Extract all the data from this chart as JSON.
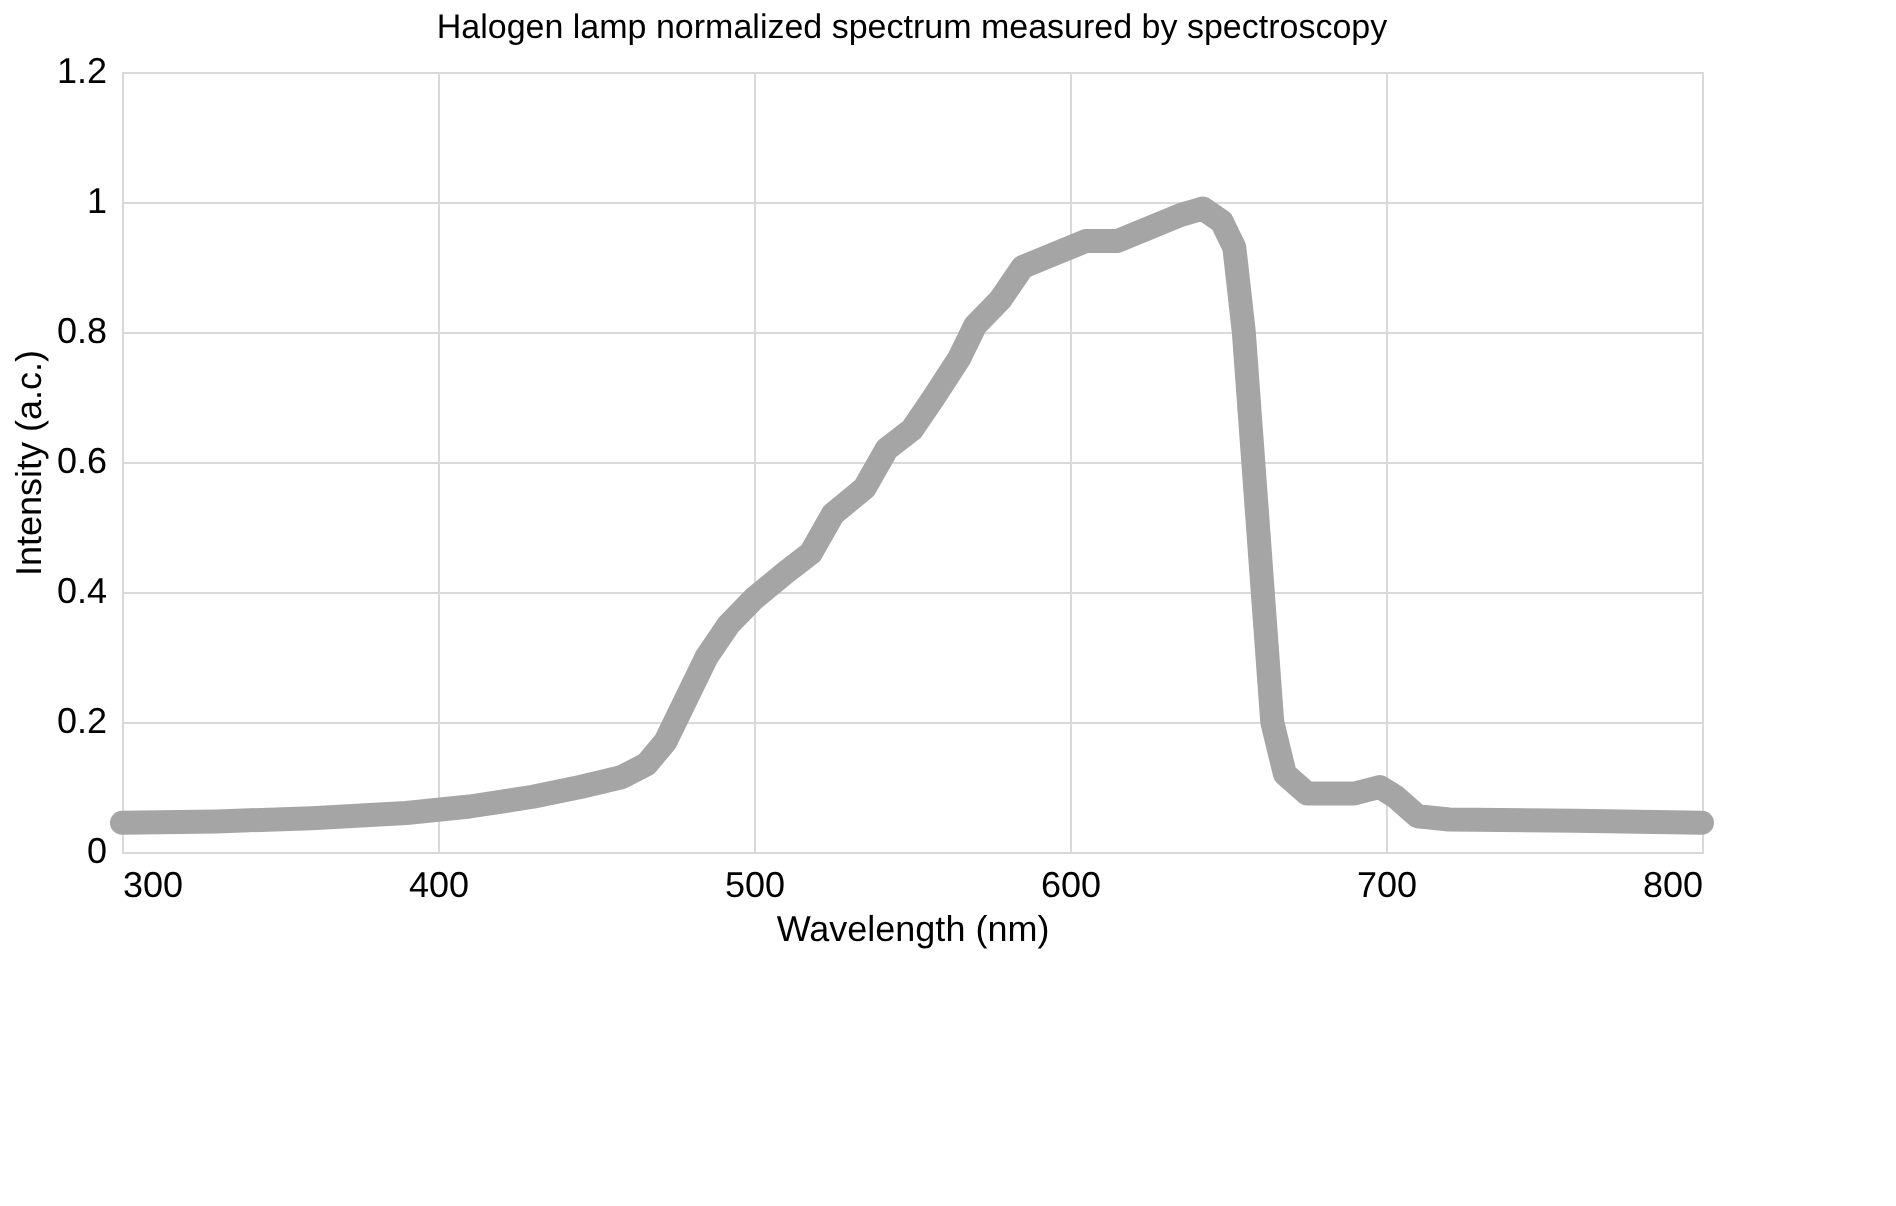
{
  "chart_data": {
    "type": "line",
    "title": "Halogen lamp normalized spectrum measured by spectroscopy",
    "xlabel": "Wavelength (nm)",
    "ylabel": "Intensity (a.c.)",
    "series": [
      {
        "color": "#a5a5a5",
        "x": [
          300,
          330,
          360,
          390,
          410,
          430,
          445,
          458,
          466,
          472,
          478,
          485,
          492,
          500,
          510,
          518,
          525,
          535,
          542,
          550,
          557,
          565,
          570,
          578,
          585,
          595,
          605,
          615,
          625,
          635,
          642,
          648,
          652,
          655,
          658,
          661,
          664,
          668,
          675,
          690,
          698,
          703,
          710,
          720,
          760,
          800
        ],
        "values": [
          0.045,
          0.047,
          0.052,
          0.06,
          0.07,
          0.085,
          0.1,
          0.115,
          0.135,
          0.17,
          0.23,
          0.3,
          0.35,
          0.39,
          0.43,
          0.46,
          0.52,
          0.56,
          0.62,
          0.65,
          0.7,
          0.76,
          0.81,
          0.85,
          0.9,
          0.92,
          0.94,
          0.94,
          0.96,
          0.98,
          0.99,
          0.97,
          0.93,
          0.8,
          0.6,
          0.4,
          0.2,
          0.12,
          0.09,
          0.09,
          0.1,
          0.085,
          0.055,
          0.05,
          0.048,
          0.045
        ]
      }
    ],
    "xlim": [
      300,
      800
    ],
    "xticks": [
      300,
      400,
      500,
      600,
      700,
      800
    ],
    "ylim": [
      0,
      1.2
    ],
    "yticks": [
      0,
      0.2,
      0.4,
      0.6,
      0.8,
      1,
      1.2
    ],
    "grid": true,
    "marker": "none",
    "line_style": "solid"
  }
}
